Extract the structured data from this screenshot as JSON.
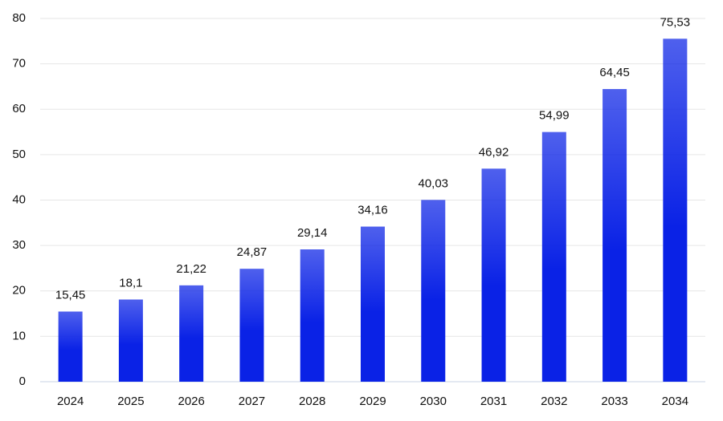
{
  "chart_data": {
    "type": "bar",
    "categories": [
      "2024",
      "2025",
      "2026",
      "2027",
      "2028",
      "2029",
      "2030",
      "2031",
      "2032",
      "2033",
      "2034"
    ],
    "values": [
      15.45,
      18.1,
      21.22,
      24.87,
      29.14,
      34.16,
      40.03,
      46.92,
      54.99,
      64.45,
      75.53
    ],
    "value_labels": [
      "15,45",
      "18,1",
      "21,22",
      "24,87",
      "29,14",
      "34,16",
      "40,03",
      "46,92",
      "54,99",
      "64,45",
      "75,53"
    ],
    "color": "#0a22e6",
    "ylim": [
      0,
      80
    ],
    "yticks": [
      0,
      10,
      20,
      30,
      40,
      50,
      60,
      70,
      80
    ],
    "grid": true
  }
}
